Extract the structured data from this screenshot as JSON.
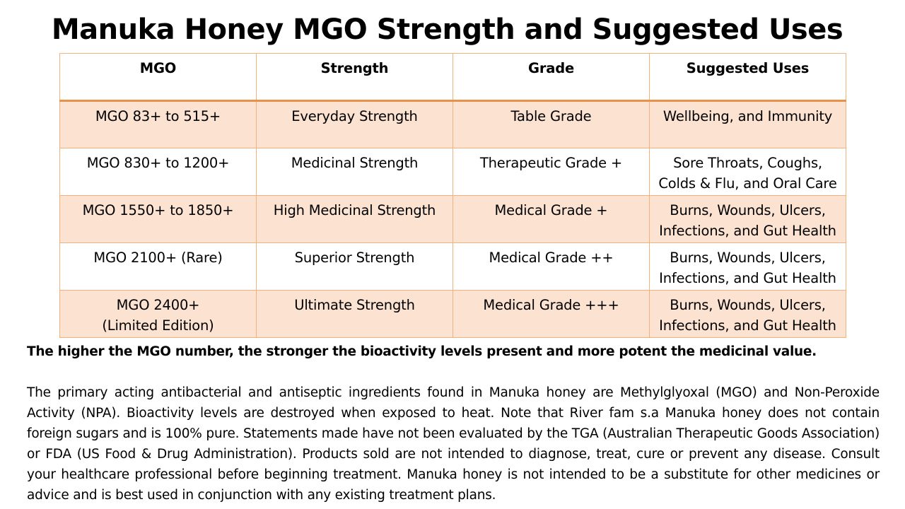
{
  "title": "Manuka Honey MGO Strength and Suggested Uses",
  "table": {
    "headers": [
      "MGO",
      "Strength",
      "Grade",
      "Suggested Uses"
    ],
    "rows": [
      {
        "mgo": [
          "MGO 83+ to 515+"
        ],
        "strength": "Everyday Strength",
        "grade": "Table Grade",
        "uses": [
          "Wellbeing, and Immunity"
        ]
      },
      {
        "mgo": [
          "MGO 830+ to 1200+"
        ],
        "strength": "Medicinal Strength",
        "grade": "Therapeutic Grade +",
        "uses": [
          "Sore Throats, Coughs,",
          "Colds & Flu, and Oral Care"
        ]
      },
      {
        "mgo": [
          "MGO 1550+ to 1850+"
        ],
        "strength": "High Medicinal Strength",
        "grade": "Medical Grade +",
        "uses": [
          "Burns, Wounds, Ulcers,",
          "Infections, and Gut Health"
        ]
      },
      {
        "mgo": [
          "MGO 2100+ (Rare)"
        ],
        "strength": "Superior Strength",
        "grade": "Medical Grade ++",
        "uses": [
          "Burns, Wounds, Ulcers,",
          "Infections, and Gut Health"
        ]
      },
      {
        "mgo": [
          "MGO 2400+",
          "(Limited Edition)"
        ],
        "strength": "Ultimate Strength",
        "grade": "Medical Grade +++",
        "uses": [
          "Burns, Wounds, Ulcers,",
          "Infections, and Gut Health"
        ]
      }
    ]
  },
  "highlight": "The higher the MGO number, the stronger the bioactivity levels present and more potent the medicinal value.",
  "disclaimer": "The primary acting antibacterial and antiseptic ingredients found in Manuka honey are Methylglyoxal (MGO) and Non-Peroxide Activity (NPA). Bioactivity levels are destroyed when exposed to heat. Note that River fam s.a Manuka honey does not contain foreign sugars and is 100% pure. Statements made have not been evaluated by the TGA (Australian Therapeutic Goods Association) or FDA (US Food & Drug Administration). Products sold are not intended to diagnose, treat, cure or prevent any disease. Consult your healthcare professional before beginning treatment. Manuka honey is not intended to be a substitute for other medicines or advice and is best used in conjunction with any existing treatment plans.",
  "colors": {
    "row_shade": "#fbe2d1",
    "border": "#f0b27e",
    "header_rule": "#e8914a"
  }
}
